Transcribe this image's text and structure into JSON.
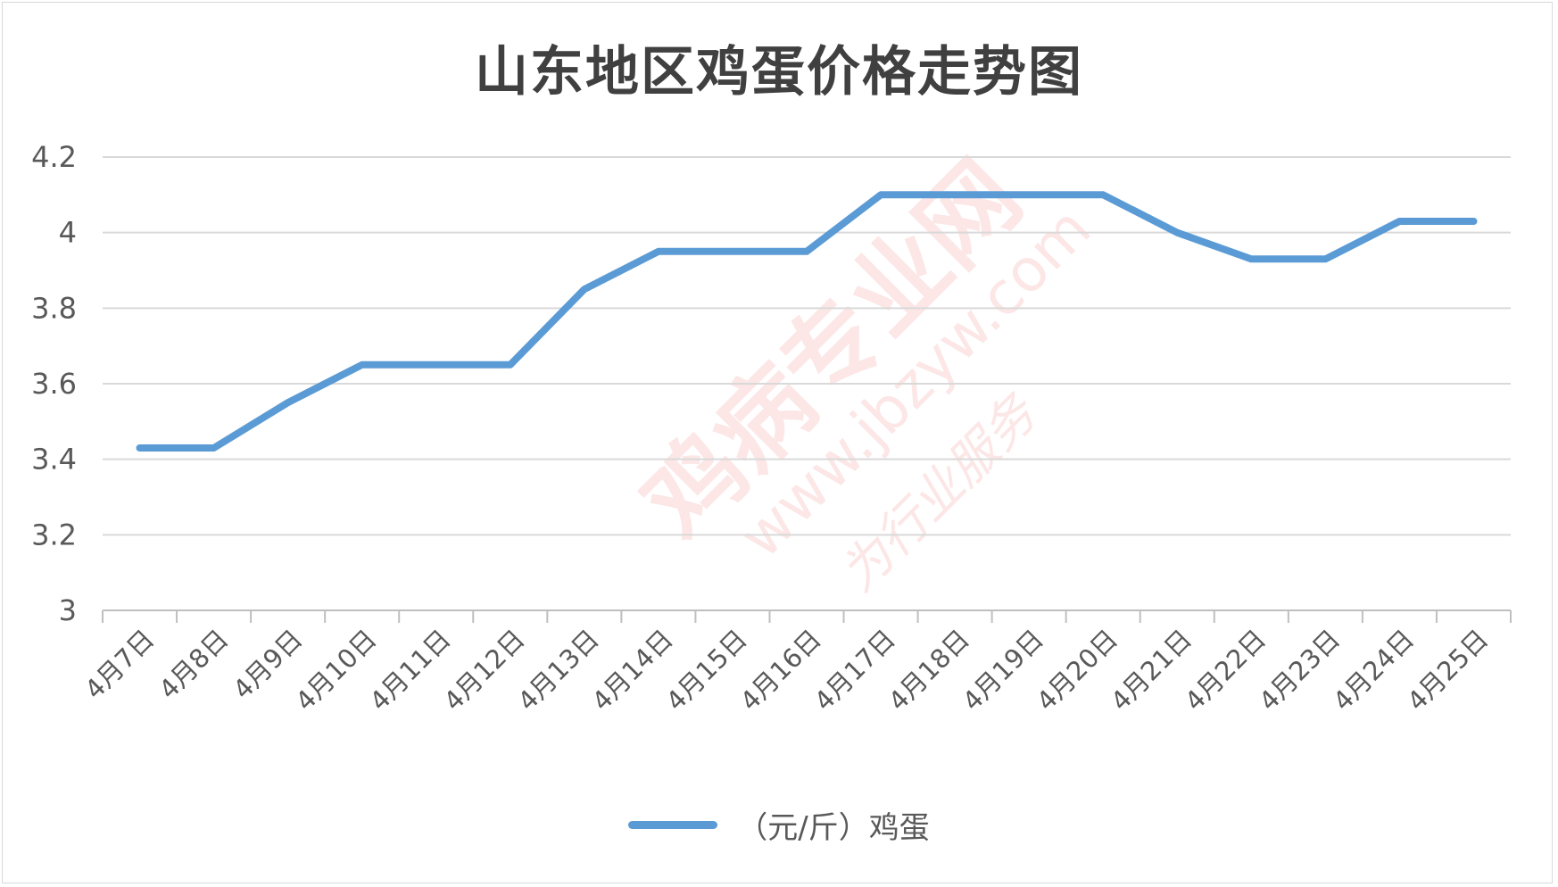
{
  "chart_data": {
    "type": "line",
    "title": "山东地区鸡蛋价格走势图",
    "categories": [
      "4月7日",
      "4月8日",
      "4月9日",
      "4月10日",
      "4月11日",
      "4月12日",
      "4月13日",
      "4月14日",
      "4月15日",
      "4月16日",
      "4月17日",
      "4月18日",
      "4月19日",
      "4月20日",
      "4月21日",
      "4月22日",
      "4月23日",
      "4月24日",
      "4月25日"
    ],
    "series": [
      {
        "name": "（元/斤）鸡蛋",
        "color": "#5b9bd5",
        "values": [
          3.43,
          3.43,
          3.55,
          3.65,
          3.65,
          3.65,
          3.85,
          3.95,
          3.95,
          3.95,
          4.1,
          4.1,
          4.1,
          4.1,
          4.0,
          3.93,
          3.93,
          4.03,
          4.03
        ]
      }
    ],
    "yticks": [
      "3",
      "3.2",
      "3.4",
      "3.6",
      "3.8",
      "4",
      "4.2"
    ],
    "ylim": [
      3,
      4.2
    ],
    "grid": true,
    "legend_position": "bottom",
    "xlabel": "",
    "ylabel": ""
  },
  "watermark": {
    "main": "鸡病专业网",
    "url": "www.jbzyw.com",
    "script": "为行业服务"
  }
}
